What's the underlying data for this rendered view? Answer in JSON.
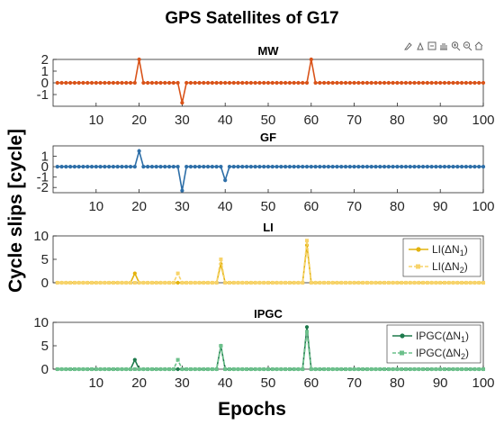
{
  "figure": {
    "title": "GPS Satellites of G17",
    "xlabel": "Epochs",
    "ylabel": "Cycle slips [cycle]"
  },
  "toolbar": {
    "icons": [
      "brush-icon",
      "data-tip-icon",
      "export-icon",
      "pan-icon",
      "zoom-in-icon",
      "zoom-out-icon",
      "home-icon"
    ]
  },
  "chart_data": [
    {
      "type": "line",
      "title": "MW",
      "xlim": [
        0,
        100
      ],
      "ylim": [
        -2,
        2
      ],
      "x_ticks": [
        10,
        20,
        30,
        40,
        50,
        60,
        70,
        80,
        90,
        100
      ],
      "y_ticks": [
        -1,
        0,
        1,
        2
      ],
      "color": "#D95319",
      "series": [
        {
          "values": {
            "start": 1,
            "end": 100,
            "default": 0,
            "spikes": {
              "20": 2,
              "30": -1.7,
              "60": 2
            }
          }
        }
      ]
    },
    {
      "type": "line",
      "title": "GF",
      "xlim": [
        0,
        100
      ],
      "ylim": [
        -2.5,
        2
      ],
      "x_ticks": [
        10,
        20,
        30,
        40,
        50,
        60,
        70,
        80,
        90,
        100
      ],
      "y_ticks": [
        -2,
        -1,
        0,
        1
      ],
      "color": "#2E6FA8",
      "series": [
        {
          "values": {
            "start": 1,
            "end": 100,
            "default": 0,
            "spikes": {
              "20": 1.5,
              "30": -2.3,
              "40": -1.3
            }
          }
        }
      ]
    },
    {
      "type": "line",
      "title": "LI",
      "xlim": [
        0,
        100
      ],
      "ylim": [
        0,
        10
      ],
      "x_ticks": [],
      "y_ticks": [
        0,
        5,
        10
      ],
      "legend": {
        "position": "top-right",
        "entries": [
          {
            "label": "LI(ΔN",
            "sub": "1",
            "tail": ")",
            "color": "#E3B30E",
            "dash": "solid",
            "marker": "circle"
          },
          {
            "label": "LI(ΔN",
            "sub": "2",
            "tail": ")",
            "color": "#F7D36A",
            "dash": "dashed",
            "marker": "square"
          }
        ]
      },
      "series": [
        {
          "name": "LI(ΔN1)",
          "values": {
            "start": 1,
            "end": 100,
            "default": 0,
            "spikes": {
              "19": 2,
              "39": 4,
              "59": 8
            }
          }
        },
        {
          "name": "LI(ΔN2)",
          "values": {
            "start": 1,
            "end": 100,
            "default": 0,
            "spikes": {
              "29": 2,
              "39": 5,
              "59": 9
            }
          }
        }
      ]
    },
    {
      "type": "line",
      "title": "IPGC",
      "xlim": [
        0,
        100
      ],
      "ylim": [
        0,
        10
      ],
      "x_ticks": [
        10,
        20,
        30,
        40,
        50,
        60,
        70,
        80,
        90,
        100
      ],
      "y_ticks": [
        0,
        5,
        10
      ],
      "legend": {
        "position": "top-right",
        "entries": [
          {
            "label": "IPGC(ΔN",
            "sub": "1",
            "tail": ")",
            "color": "#1E7A4C",
            "dash": "solid",
            "marker": "circle"
          },
          {
            "label": "IPGC(ΔN",
            "sub": "2",
            "tail": ")",
            "color": "#6CC08B",
            "dash": "dashed",
            "marker": "square"
          }
        ]
      },
      "series": [
        {
          "name": "IPGC(ΔN1)",
          "values": {
            "start": 1,
            "end": 100,
            "default": 0,
            "spikes": {
              "19": 2,
              "39": 5,
              "59": 9
            }
          }
        },
        {
          "name": "IPGC(ΔN2)",
          "values": {
            "start": 1,
            "end": 100,
            "default": 0,
            "spikes": {
              "29": 2,
              "39": 5,
              "59": 8
            }
          }
        }
      ]
    }
  ]
}
